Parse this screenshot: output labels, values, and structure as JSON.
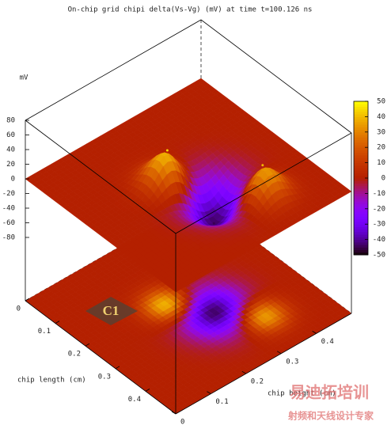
{
  "chart_data": {
    "type": "surface3d",
    "title": "On-chip grid chipi delta(Vs-Vg) (mV) at time t=100.126 ns",
    "zlabel": "mV",
    "xlabel": "chip length (cm)",
    "ylabel": "chip height (cm)",
    "xlim": [
      0,
      0.5
    ],
    "ylim": [
      0,
      0.5
    ],
    "zlim": [
      -80,
      80
    ],
    "xticks": [
      0,
      0.1,
      0.2,
      0.3,
      0.4
    ],
    "yticks": [
      0,
      0.1,
      0.2,
      0.3,
      0.4
    ],
    "zticks": [
      80,
      60,
      40,
      20,
      0,
      -20,
      -40,
      -60,
      -80
    ],
    "cblim": [
      -50,
      50
    ],
    "cbticks": [
      50,
      40,
      30,
      20,
      10,
      0,
      -10,
      -20,
      -30,
      -40,
      -50
    ],
    "surface": {
      "x": [
        0.215,
        0.38,
        0.3
      ],
      "y": [
        0.22,
        0.35,
        0.28
      ],
      "z": [
        45,
        40,
        -45
      ]
    },
    "annotation": "C1"
  },
  "watermark": {
    "title": "易迪拓培训",
    "subtitle": "射频和天线设计专家"
  }
}
